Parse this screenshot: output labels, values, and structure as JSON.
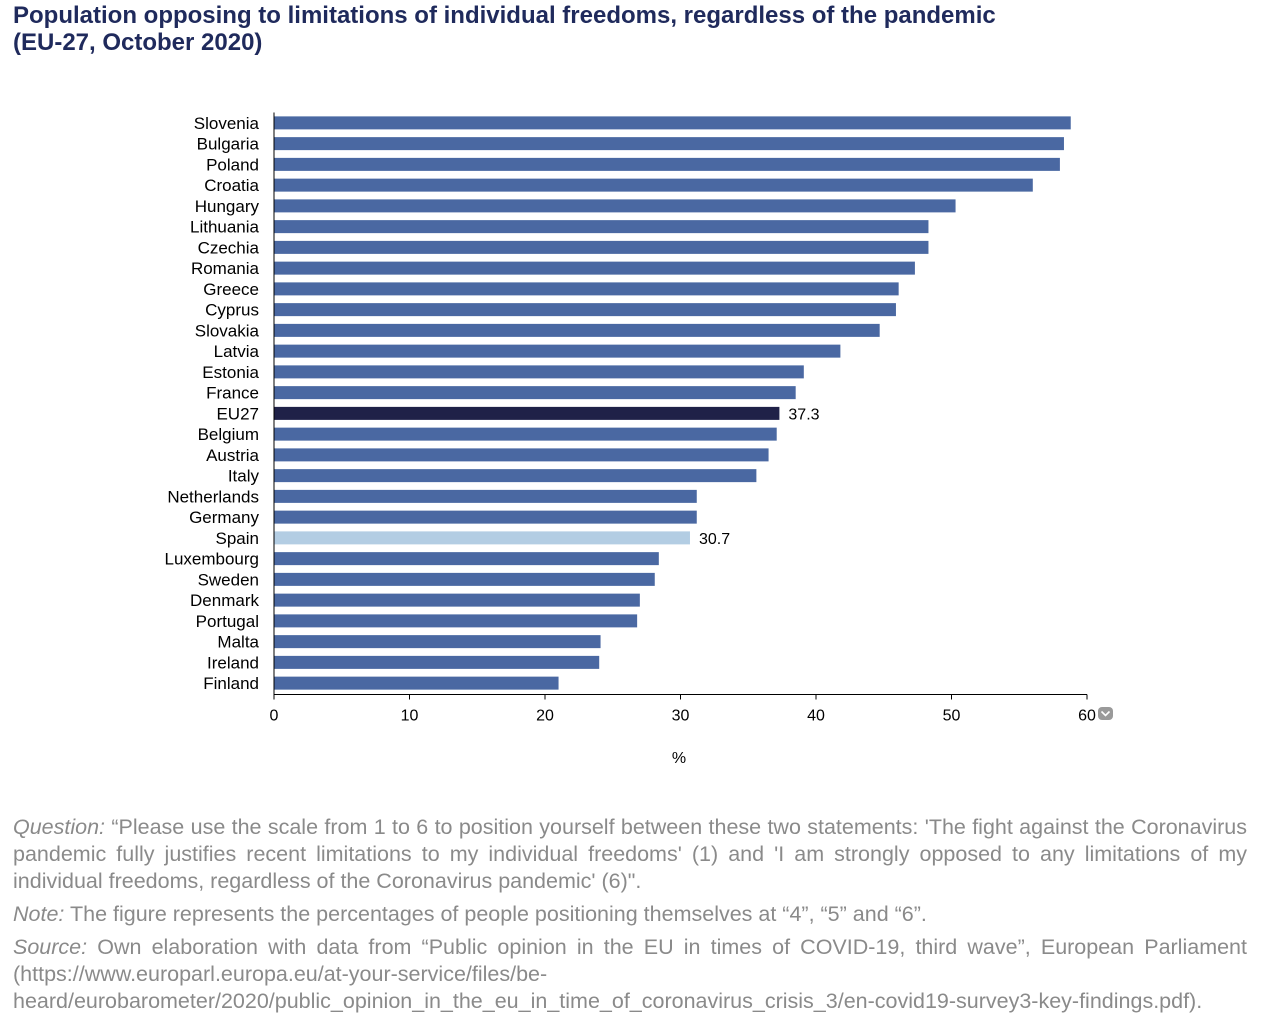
{
  "title_lines": [
    "Population opposing to limitations of individual freedoms, regardless of the pandemic",
    "(EU-27, October 2020)"
  ],
  "chart_data": {
    "type": "bar",
    "orientation": "horizontal",
    "categories": [
      "Slovenia",
      "Bulgaria",
      "Poland",
      "Croatia",
      "Hungary",
      "Lithuania",
      "Czechia",
      "Romania",
      "Greece",
      "Cyprus",
      "Slovakia",
      "Latvia",
      "Estonia",
      "France",
      "EU27",
      "Belgium",
      "Austria",
      "Italy",
      "Netherlands",
      "Germany",
      "Spain",
      "Luxembourg",
      "Sweden",
      "Denmark",
      "Portugal",
      "Malta",
      "Ireland",
      "Finland"
    ],
    "values": [
      58.8,
      58.3,
      58.0,
      56.0,
      50.3,
      48.3,
      48.3,
      47.3,
      46.1,
      45.9,
      44.7,
      41.8,
      39.1,
      38.5,
      37.3,
      37.1,
      36.5,
      35.6,
      31.2,
      31.2,
      30.7,
      28.4,
      28.1,
      27.0,
      26.8,
      24.1,
      24.0,
      21.0
    ],
    "data_labels": [
      {
        "category": "EU27",
        "text": "37.3"
      },
      {
        "category": "Spain",
        "text": "30.7"
      }
    ],
    "xlim": [
      0,
      60
    ],
    "x_ticks": [
      "0",
      "10",
      "20",
      "30",
      "40",
      "50",
      "60"
    ],
    "xlabel": "%",
    "colors": {
      "default": "#4a68a2",
      "EU27": "#1f2148",
      "Spain": "#b3cde3",
      "axis": "#000000"
    }
  },
  "notes": {
    "question_label": "Question:",
    "question_text": " “Please use the scale from 1 to 6 to position yourself between these two statements: 'The fight against the Coronavirus pandemic fully justifies recent limitations to my individual freedoms' (1) and 'I am strongly opposed to any limitations of my individual freedoms, regardless of the Coronavirus pandemic' (6)\".",
    "note_label": "Note:",
    "note_text": " The figure represents the percentages of people positioning themselves at “4”, “5” and “6”.",
    "source_label": "Source:",
    "source_text": " Own elaboration with data from “Public opinion in the EU in times of COVID-19, third wave”, European Parliament (https://www.europarl.europa.eu/at-your-service/files/be-heard/eurobarometer/2020/public_opinion_in_the_eu_in_time_of_coronavirus_crisis_3/en-covid19-survey3-key-findings.pdf)."
  }
}
